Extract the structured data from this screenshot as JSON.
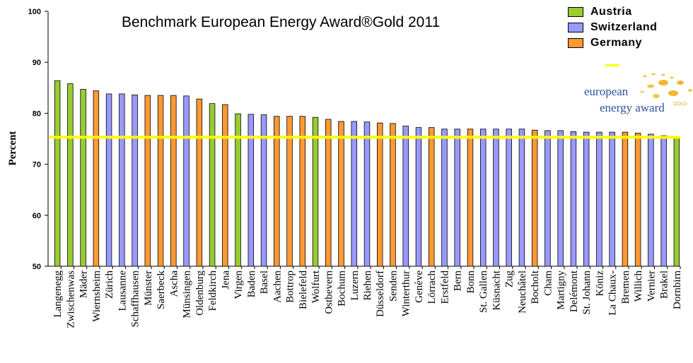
{
  "chart_data": {
    "type": "bar",
    "title": "Benchmark European Energy Award®Gold 2011",
    "ylabel": "Percent",
    "xlabel": "",
    "ylim": [
      50,
      100
    ],
    "yticks": [
      50,
      60,
      70,
      80,
      90,
      100
    ],
    "grid": false,
    "legend_position": "top-right",
    "reference_line": 75.3,
    "reference_line_color": "#ffff00",
    "series_legend": [
      {
        "name": "Austria",
        "color": "#99cc33"
      },
      {
        "name": "Switzerland",
        "color": "#9999ff"
      },
      {
        "name": "Germany",
        "color": "#ff9933"
      }
    ],
    "categories": [
      "Langenegg",
      "Zwischenwas",
      "Mäder",
      "Wiernsheim",
      "Zürich",
      "Lausanne",
      "Schaffhausen",
      "Münster",
      "Saerbeck",
      "Ascha",
      "Münsingen",
      "Oldenburg",
      "Feldkirch",
      "Jena",
      "Virgen",
      "Baden",
      "Basel",
      "Aachen",
      "Bottrop",
      "Bielefeld",
      "Wolfurt",
      "Ostbevern",
      "Bochum",
      "Luzern",
      "Riehen",
      "Düsseldorf",
      "Senden",
      "Winterthur",
      "Genève",
      "Lörrach",
      "Erstfeld",
      "Bern",
      "Bonn",
      "St. Gallen",
      "Küsnacht",
      "Zug",
      "Neuchâtel",
      "Bocholt",
      "Cham",
      "Martigny",
      "Delémont",
      "St. Johann",
      "Köniz",
      "La Chaux-",
      "Bremen",
      "Willich",
      "Vernier",
      "Brakel",
      "Dornbirn"
    ],
    "values": [
      86.4,
      85.8,
      84.7,
      84.4,
      83.8,
      83.8,
      83.6,
      83.5,
      83.5,
      83.5,
      83.4,
      82.8,
      81.9,
      81.7,
      79.9,
      79.8,
      79.7,
      79.4,
      79.4,
      79.4,
      79.2,
      78.8,
      78.4,
      78.4,
      78.3,
      78.1,
      78.0,
      77.5,
      77.2,
      77.2,
      76.9,
      76.9,
      76.9,
      76.9,
      76.9,
      76.9,
      76.9,
      76.7,
      76.6,
      76.6,
      76.4,
      76.3,
      76.3,
      76.3,
      76.3,
      76.1,
      75.9,
      75.6,
      75.4
    ],
    "countries": [
      "Austria",
      "Austria",
      "Austria",
      "Germany",
      "Switzerland",
      "Switzerland",
      "Switzerland",
      "Germany",
      "Germany",
      "Germany",
      "Switzerland",
      "Germany",
      "Austria",
      "Germany",
      "Austria",
      "Switzerland",
      "Switzerland",
      "Germany",
      "Germany",
      "Germany",
      "Austria",
      "Germany",
      "Germany",
      "Switzerland",
      "Switzerland",
      "Germany",
      "Germany",
      "Switzerland",
      "Switzerland",
      "Germany",
      "Switzerland",
      "Switzerland",
      "Germany",
      "Switzerland",
      "Switzerland",
      "Switzerland",
      "Switzerland",
      "Germany",
      "Switzerland",
      "Switzerland",
      "Switzerland",
      "Switzerland",
      "Switzerland",
      "Switzerland",
      "Germany",
      "Germany",
      "Switzerland",
      "Switzerland",
      "Austria"
    ]
  },
  "logo": {
    "line1": "european",
    "line2": "energy award",
    "badge": "GOLD"
  }
}
